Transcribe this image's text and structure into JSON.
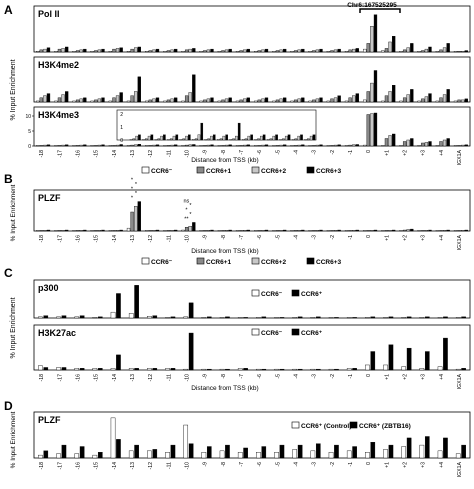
{
  "figure": {
    "annotation_chr": "Chr6:167525295",
    "panel_letters": [
      "A",
      "B",
      "C",
      "D"
    ],
    "ylabels": {
      "A": "% Input Enrichment",
      "B": "% Input Enrichment",
      "C": "% Input Enrichment",
      "D": "% Input Enrichment"
    },
    "xlabel": "Distance from TSS (kb)",
    "legends": {
      "A": [
        "CCR6⁻",
        "CCR6+1",
        "CCR6+2",
        "CCR6+3"
      ],
      "B": [
        "CCR6⁻",
        "CCR6+1",
        "CCR6+2",
        "CCR6+3"
      ],
      "C": [
        "CCR6⁻",
        "CCR6⁺"
      ],
      "D": [
        "CCR6⁺ (Control)",
        "CCR6⁺ (ZBTB16)"
      ]
    },
    "significance": {
      "B_m13": [
        "*",
        "*",
        "*",
        "*",
        "*"
      ],
      "B_m10": [
        "ns",
        "*",
        "*",
        "*",
        "**"
      ]
    }
  },
  "chart_data": [
    {
      "panel": "A",
      "title": "Pol II",
      "type": "bar",
      "ylim": [
        0,
        3
      ],
      "categories": [
        "-18",
        "-17",
        "-16",
        "-15",
        "-14",
        "-13",
        "-12",
        "-11",
        "-10",
        "-9",
        "-8",
        "-7",
        "-6",
        "-5",
        "-4",
        "-3",
        "-2",
        "-1",
        "0",
        "+1",
        "+2",
        "+3",
        "+4",
        "IGX1A"
      ],
      "series": [
        {
          "name": "CCR6⁻",
          "values": [
            0.05,
            0.05,
            0.05,
            0.05,
            0.05,
            0.05,
            0.05,
            0.05,
            0.05,
            0.05,
            0.05,
            0.05,
            0.05,
            0.05,
            0.05,
            0.05,
            0.05,
            0.05,
            0.2,
            0.1,
            0.05,
            0.05,
            0.05,
            0.05
          ]
        },
        {
          "name": "CCR6+1",
          "values": [
            0.15,
            0.2,
            0.1,
            0.1,
            0.2,
            0.2,
            0.1,
            0.1,
            0.15,
            0.1,
            0.1,
            0.1,
            0.1,
            0.1,
            0.1,
            0.1,
            0.1,
            0.15,
            0.6,
            0.25,
            0.15,
            0.1,
            0.15,
            0.05
          ]
        },
        {
          "name": "CCR6+2",
          "values": [
            0.2,
            0.25,
            0.15,
            0.15,
            0.25,
            0.3,
            0.15,
            0.15,
            0.2,
            0.15,
            0.15,
            0.15,
            0.15,
            0.15,
            0.15,
            0.15,
            0.15,
            0.2,
            1.8,
            0.7,
            0.3,
            0.2,
            0.3,
            0.05
          ]
        },
        {
          "name": "CCR6+3",
          "values": [
            0.3,
            0.35,
            0.2,
            0.2,
            0.3,
            0.35,
            0.2,
            0.2,
            0.25,
            0.2,
            0.2,
            0.2,
            0.2,
            0.2,
            0.2,
            0.2,
            0.2,
            0.25,
            2.6,
            1.1,
            0.6,
            0.35,
            0.6,
            0.1
          ]
        }
      ]
    },
    {
      "panel": "A",
      "title": "H3K4me2",
      "type": "bar",
      "ylim": [
        0,
        2
      ],
      "categories": [
        "-18",
        "-17",
        "-16",
        "-15",
        "-14",
        "-13",
        "-12",
        "-11",
        "-10",
        "-9",
        "-8",
        "-7",
        "-6",
        "-5",
        "-4",
        "-3",
        "-2",
        "-1",
        "0",
        "+1",
        "+2",
        "+3",
        "+4",
        "IGX1A"
      ],
      "series": [
        {
          "name": "CCR6⁻",
          "values": [
            0.05,
            0.05,
            0.05,
            0.05,
            0.05,
            0.05,
            0.05,
            0.05,
            0.05,
            0.05,
            0.05,
            0.05,
            0.05,
            0.05,
            0.05,
            0.05,
            0.05,
            0.05,
            0.1,
            0.05,
            0.05,
            0.05,
            0.05,
            0.05
          ]
        },
        {
          "name": "CCR6+1",
          "values": [
            0.2,
            0.2,
            0.1,
            0.1,
            0.2,
            0.3,
            0.1,
            0.1,
            0.3,
            0.1,
            0.1,
            0.1,
            0.1,
            0.1,
            0.1,
            0.1,
            0.15,
            0.2,
            0.5,
            0.3,
            0.2,
            0.15,
            0.2,
            0.1
          ]
        },
        {
          "name": "CCR6+2",
          "values": [
            0.3,
            0.35,
            0.15,
            0.15,
            0.3,
            0.5,
            0.15,
            0.15,
            0.45,
            0.15,
            0.15,
            0.15,
            0.15,
            0.15,
            0.15,
            0.15,
            0.2,
            0.3,
            0.9,
            0.5,
            0.35,
            0.25,
            0.35,
            0.1
          ]
        },
        {
          "name": "CCR6+3",
          "values": [
            0.4,
            0.5,
            0.2,
            0.2,
            0.45,
            1.2,
            0.2,
            0.2,
            1.3,
            0.2,
            0.2,
            0.2,
            0.2,
            0.2,
            0.2,
            0.2,
            0.3,
            0.4,
            1.5,
            0.8,
            0.6,
            0.4,
            0.6,
            0.15
          ]
        }
      ]
    },
    {
      "panel": "A",
      "title": "H3K4me3",
      "type": "bar",
      "ylim": [
        0,
        12
      ],
      "yticks": [
        0,
        5,
        10
      ],
      "categories": [
        "-18",
        "-17",
        "-16",
        "-15",
        "-14",
        "-13",
        "-12",
        "-11",
        "-10",
        "-9",
        "-8",
        "-7",
        "-6",
        "-5",
        "-4",
        "-3",
        "-2",
        "-1",
        "0",
        "+1",
        "+2",
        "+3",
        "+4",
        "IGX1A"
      ],
      "series": [
        {
          "name": "CCR6⁻",
          "values": [
            0.1,
            0.1,
            0.1,
            0.1,
            0.1,
            0.1,
            0.1,
            0.1,
            0.1,
            0.1,
            0.1,
            0.1,
            0.1,
            0.1,
            0.1,
            0.1,
            0.1,
            0.1,
            0.3,
            0.2,
            0.1,
            0.1,
            0.1,
            0.1
          ]
        },
        {
          "name": "CCR6+1",
          "values": [
            0.2,
            0.2,
            0.2,
            0.2,
            0.2,
            0.3,
            0.2,
            0.2,
            0.3,
            0.2,
            0.2,
            0.2,
            0.2,
            0.2,
            0.2,
            0.2,
            0.2,
            0.3,
            10.5,
            2.5,
            1.5,
            1.0,
            1.5,
            0.2
          ]
        },
        {
          "name": "CCR6+2",
          "values": [
            0.3,
            0.3,
            0.3,
            0.3,
            0.3,
            0.4,
            0.3,
            0.3,
            0.4,
            0.3,
            0.3,
            0.3,
            0.3,
            0.3,
            0.3,
            0.3,
            0.3,
            0.4,
            10.8,
            3.5,
            2.0,
            1.2,
            2.0,
            0.3
          ]
        },
        {
          "name": "CCR6+3",
          "values": [
            0.4,
            0.4,
            0.4,
            0.4,
            0.5,
            0.6,
            0.4,
            0.4,
            0.5,
            0.4,
            0.4,
            0.4,
            0.4,
            0.4,
            0.4,
            0.4,
            0.4,
            0.5,
            11.0,
            4.0,
            2.5,
            1.5,
            2.5,
            0.4
          ]
        }
      ],
      "inset": {
        "ylim": [
          0,
          2
        ],
        "yticks": [
          0,
          1,
          2
        ],
        "categories": [
          "-18",
          "-17",
          "-16",
          "-15",
          "-14",
          "-13",
          "-12",
          "-11",
          "-10",
          "-9",
          "-8",
          "-7",
          "-6",
          "-5",
          "-4"
        ],
        "series": [
          {
            "name": "CCR6⁻",
            "values": [
              0.05,
              0.05,
              0.05,
              0.05,
              0.05,
              0.05,
              0.05,
              0.05,
              0.05,
              0.05,
              0.05,
              0.05,
              0.05,
              0.05,
              0.05
            ]
          },
          {
            "name": "CCR6+1",
            "values": [
              0.1,
              0.1,
              0.1,
              0.1,
              0.1,
              0.1,
              0.1,
              0.1,
              0.1,
              0.1,
              0.1,
              0.1,
              0.1,
              0.1,
              0.1
            ]
          },
          {
            "name": "CCR6+2",
            "values": [
              0.3,
              0.3,
              0.3,
              0.3,
              0.3,
              0.4,
              0.3,
              0.3,
              0.3,
              0.3,
              0.3,
              0.3,
              0.3,
              0.3,
              0.3
            ]
          },
          {
            "name": "CCR6+3",
            "values": [
              0.4,
              0.4,
              0.4,
              0.4,
              0.4,
              1.3,
              0.4,
              0.4,
              1.3,
              0.4,
              0.4,
              0.4,
              0.4,
              0.4,
              0.4
            ]
          }
        ]
      }
    },
    {
      "panel": "B",
      "title": "PLZF",
      "type": "bar",
      "ylim": [
        0,
        2
      ],
      "categories": [
        "-18",
        "-17",
        "-16",
        "-15",
        "-14",
        "-13",
        "-12",
        "-11",
        "-10",
        "-9",
        "-8",
        "-7",
        "-6",
        "-5",
        "-4",
        "-3",
        "-2",
        "-1",
        "0",
        "+1",
        "+2",
        "+3",
        "+4",
        "IGX1A"
      ],
      "series": [
        {
          "name": "CCR6⁻",
          "values": [
            0.02,
            0.02,
            0.02,
            0.02,
            0.02,
            0.15,
            0.02,
            0.02,
            0.05,
            0.02,
            0.02,
            0.02,
            0.02,
            0.02,
            0.02,
            0.02,
            0.02,
            0.02,
            0.02,
            0.02,
            0.02,
            0.02,
            0.02,
            0.02
          ]
        },
        {
          "name": "CCR6+1",
          "values": [
            0.03,
            0.03,
            0.03,
            0.03,
            0.03,
            1.0,
            0.03,
            0.03,
            0.2,
            0.03,
            0.03,
            0.03,
            0.03,
            0.03,
            0.03,
            0.03,
            0.03,
            0.03,
            0.03,
            0.03,
            0.05,
            0.03,
            0.03,
            0.03
          ]
        },
        {
          "name": "CCR6+2",
          "values": [
            0.04,
            0.04,
            0.04,
            0.04,
            0.04,
            1.3,
            0.04,
            0.04,
            0.25,
            0.04,
            0.04,
            0.04,
            0.04,
            0.04,
            0.04,
            0.04,
            0.04,
            0.04,
            0.04,
            0.04,
            0.08,
            0.04,
            0.04,
            0.04
          ]
        },
        {
          "name": "CCR6+3",
          "values": [
            0.05,
            0.05,
            0.05,
            0.05,
            0.05,
            1.55,
            0.05,
            0.05,
            0.45,
            0.05,
            0.05,
            0.05,
            0.05,
            0.05,
            0.05,
            0.05,
            0.05,
            0.05,
            0.05,
            0.05,
            0.1,
            0.05,
            0.05,
            0.05
          ]
        }
      ]
    },
    {
      "panel": "C",
      "title": "p300",
      "type": "bar",
      "ylim": [
        0,
        3
      ],
      "categories": [
        "-18",
        "-17",
        "-16",
        "-15",
        "-14",
        "-13",
        "-12",
        "-11",
        "-10",
        "-9",
        "-8",
        "-7",
        "-6",
        "-5",
        "-4",
        "-3",
        "-2",
        "-1",
        "0",
        "+1",
        "+2",
        "+3",
        "+4",
        "IGX1A"
      ],
      "series": [
        {
          "name": "CCR6⁻",
          "values": [
            0.1,
            0.1,
            0.1,
            0.05,
            0.5,
            0.4,
            0.15,
            0.05,
            0.1,
            0.05,
            0.05,
            0.05,
            0.05,
            0.05,
            0.05,
            0.05,
            0.05,
            0.05,
            0.05,
            0.05,
            0.05,
            0.05,
            0.05,
            0.05
          ]
        },
        {
          "name": "CCR6⁺",
          "values": [
            0.2,
            0.2,
            0.2,
            0.1,
            2.1,
            2.8,
            0.2,
            0.1,
            1.3,
            0.1,
            0.1,
            0.05,
            0.1,
            0.05,
            0.1,
            0.1,
            0.05,
            0.05,
            0.1,
            0.1,
            0.1,
            0.1,
            0.1,
            0.1
          ]
        }
      ]
    },
    {
      "panel": "C",
      "title": "H3K27ac",
      "type": "bar",
      "ylim": [
        0,
        2.5
      ],
      "categories": [
        "-18",
        "-17",
        "-16",
        "-15",
        "-14",
        "-13",
        "-12",
        "-11",
        "-10",
        "-9",
        "-8",
        "-7",
        "-6",
        "-5",
        "-4",
        "-3",
        "-2",
        "-1",
        "0",
        "+1",
        "+2",
        "+3",
        "+4",
        "IGX1A"
      ],
      "series": [
        {
          "name": "CCR6⁻",
          "values": [
            0.25,
            0.15,
            0.1,
            0.1,
            0.1,
            0.1,
            0.1,
            0.1,
            0.05,
            0.05,
            0.05,
            0.1,
            0.05,
            0.05,
            0.05,
            0.05,
            0.05,
            0.1,
            0.3,
            0.3,
            0.2,
            0.1,
            0.2,
            0.05
          ]
        },
        {
          "name": "CCR6⁺",
          "values": [
            0.15,
            0.15,
            0.1,
            0.1,
            0.9,
            0.1,
            0.1,
            0.1,
            2.2,
            0.05,
            0.05,
            0.1,
            0.05,
            0.05,
            0.05,
            0.05,
            0.05,
            0.1,
            1.1,
            1.5,
            1.3,
            1.1,
            1.9,
            0.1
          ]
        }
      ]
    },
    {
      "panel": "D",
      "title": "PLZF",
      "type": "bar",
      "ylim": [
        0,
        3
      ],
      "categories": [
        "-18",
        "-17",
        "-16",
        "-15",
        "-14",
        "-13",
        "-12",
        "-11",
        "-10",
        "-9",
        "-8",
        "-7",
        "-6",
        "-5",
        "-4",
        "-3",
        "-2",
        "-1",
        "0",
        "+1",
        "+2",
        "+3",
        "+4",
        "IGX1A"
      ],
      "series": [
        {
          "name": "CCR6⁺ (Control)",
          "values": [
            0.2,
            0.3,
            0.3,
            0.2,
            2.8,
            0.5,
            0.5,
            0.4,
            2.3,
            0.4,
            0.5,
            0.4,
            0.4,
            0.4,
            0.6,
            0.5,
            0.4,
            0.5,
            0.4,
            0.6,
            0.8,
            0.9,
            0.5,
            0.3
          ]
        },
        {
          "name": "CCR6⁺ (ZBTB16)",
          "values": [
            0.5,
            0.9,
            0.8,
            0.4,
            1.3,
            0.9,
            0.6,
            0.9,
            1.0,
            0.8,
            0.9,
            0.7,
            0.8,
            0.9,
            0.9,
            1.0,
            0.9,
            0.8,
            1.1,
            0.9,
            1.4,
            1.5,
            1.4,
            0.9
          ]
        }
      ]
    }
  ]
}
